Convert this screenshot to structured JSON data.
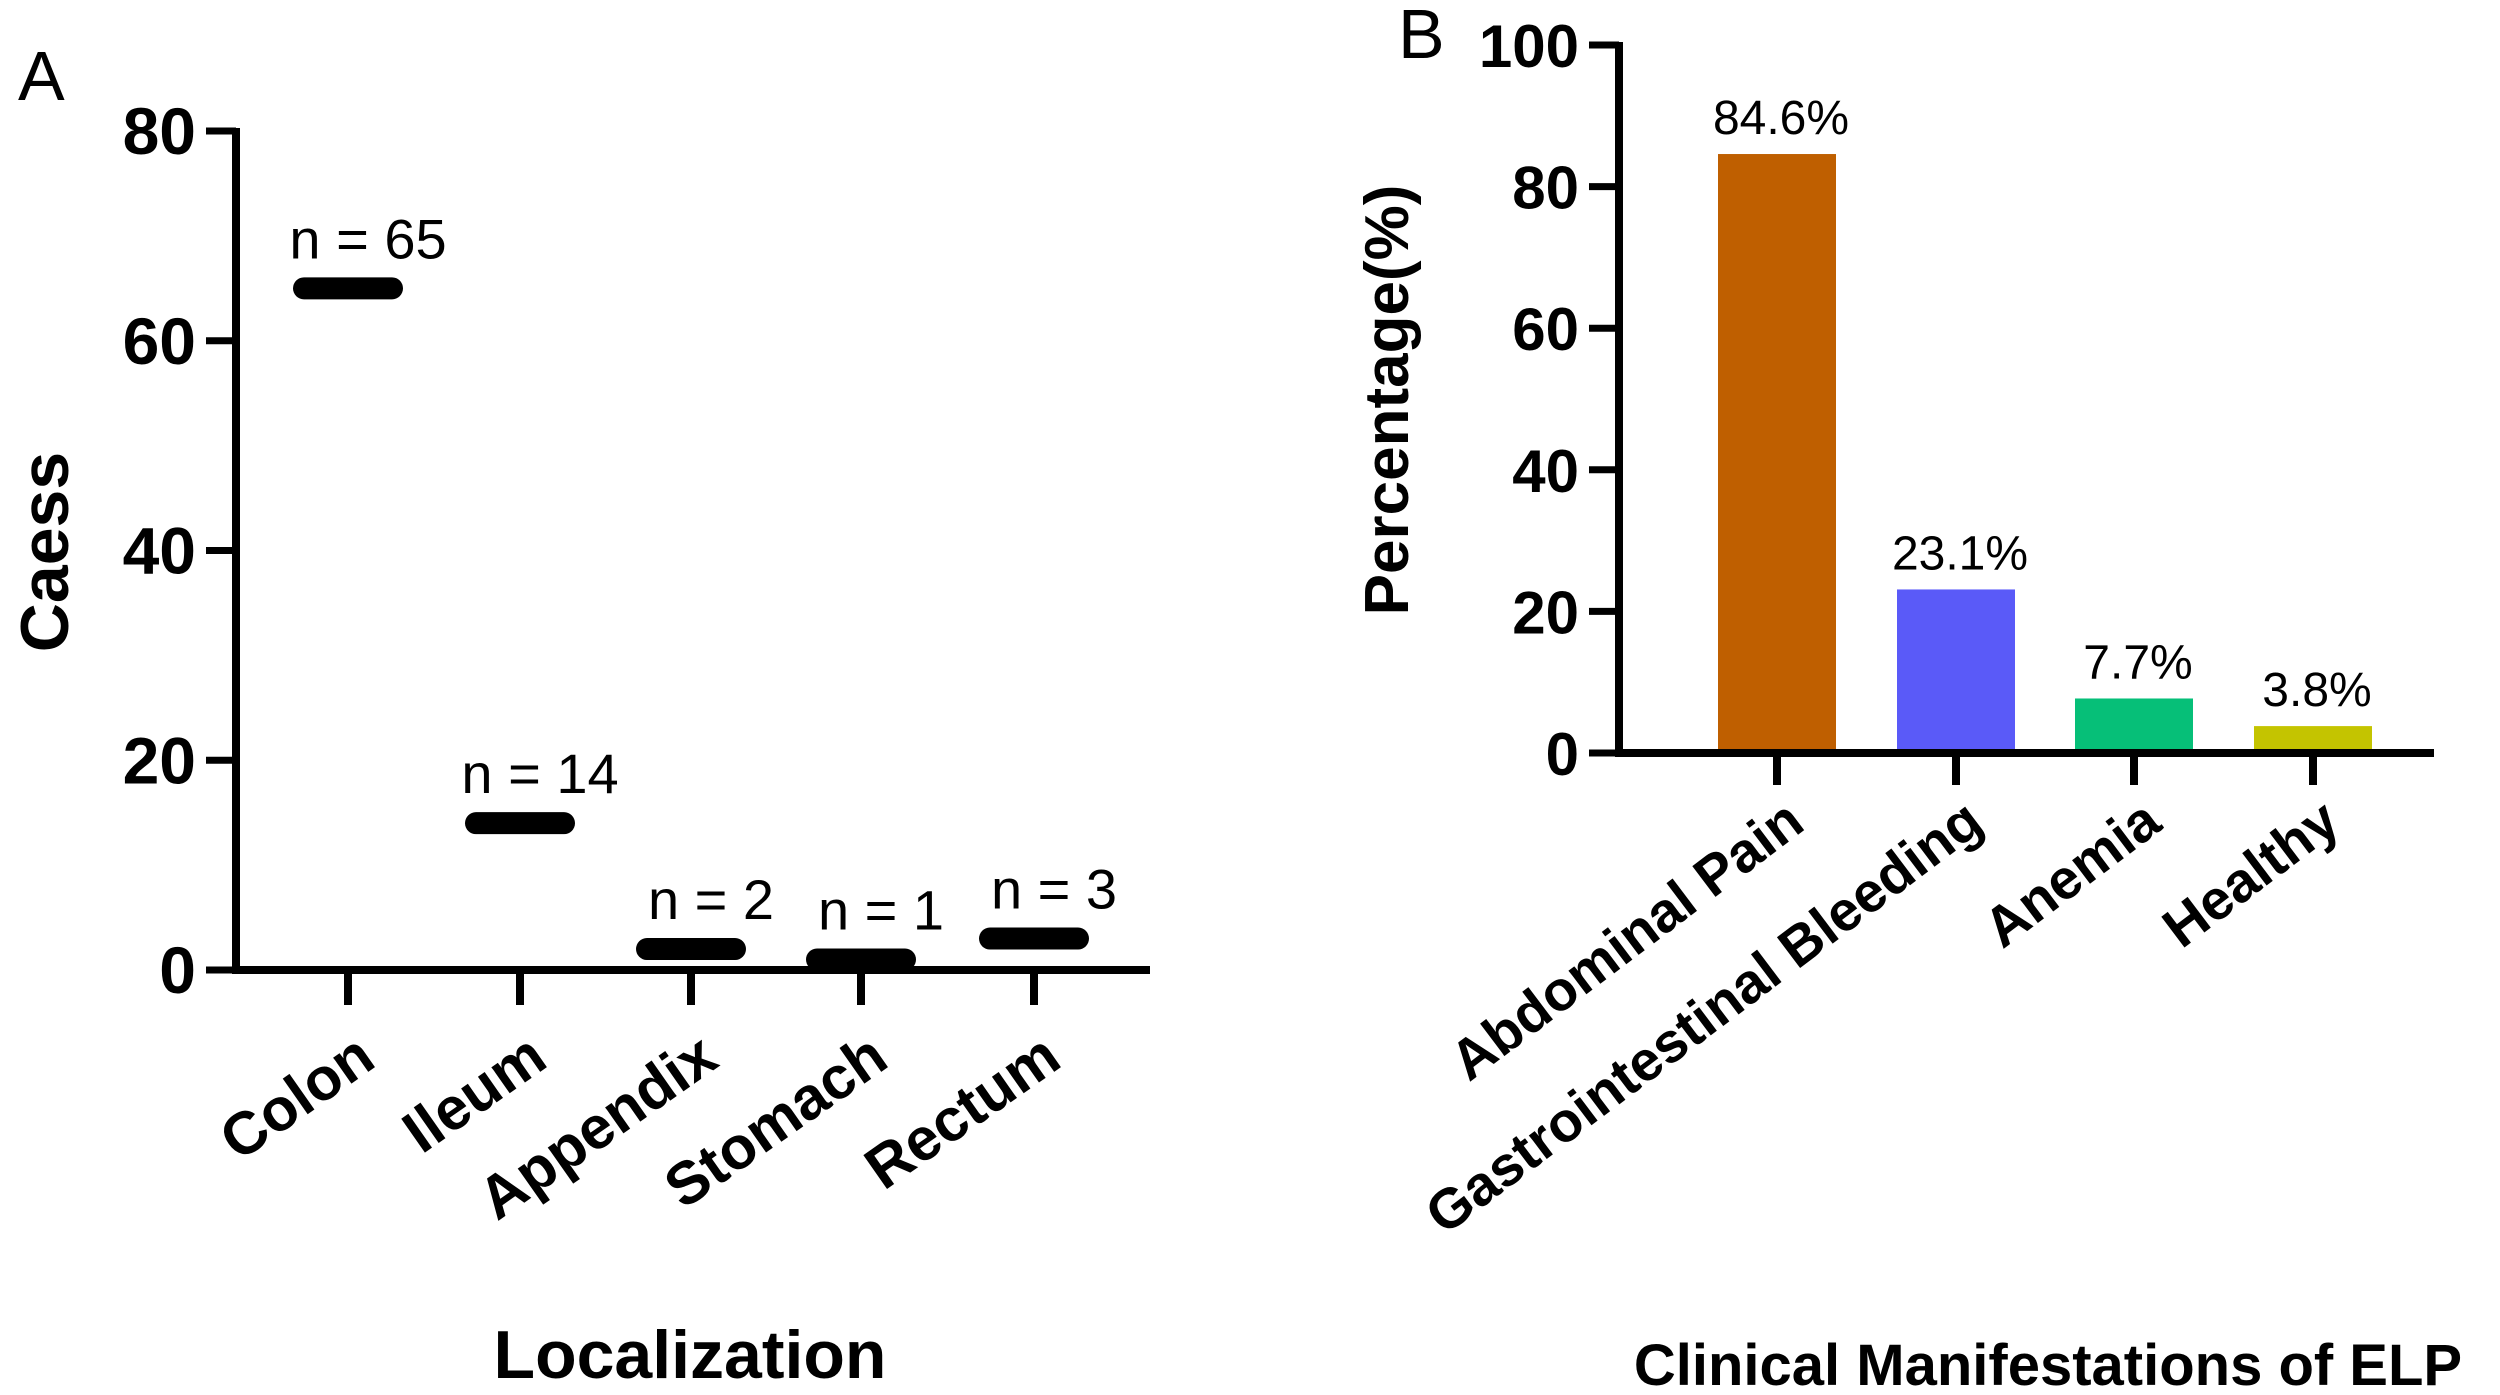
{
  "chart_data": [
    {
      "panel": "A",
      "type": "scatter",
      "xlabel": "Localization",
      "ylabel": "Caess",
      "categories": [
        "Colon",
        "Ileum",
        "Appendix",
        "Stomach",
        "Rectum"
      ],
      "values": [
        65,
        14,
        2,
        1,
        3
      ],
      "annotations": [
        "n = 65",
        "n = 14",
        "n = 2",
        "n = 1",
        "n = 3"
      ],
      "ylim": [
        0,
        80
      ],
      "yticks": [
        0,
        20,
        40,
        60,
        80
      ],
      "grid": false,
      "marker": "horizontal line",
      "color": "#000000"
    },
    {
      "panel": "B",
      "type": "bar",
      "xlabel": "Clinical Manifestations of ELP",
      "ylabel": "Percentage(%)",
      "categories": [
        "Abdominal Pain",
        "Gastrointestinal Bleeding",
        "Anemia",
        "Healthy"
      ],
      "values": [
        84.6,
        23.1,
        7.7,
        3.8
      ],
      "annotations": [
        "84.6%",
        "23.1%",
        "7.7%",
        "3.8%"
      ],
      "colors": [
        "#BF5F00",
        "#5A5AF8",
        "#06BF78",
        "#C4C400"
      ],
      "ylim": [
        0,
        100
      ],
      "yticks": [
        0,
        20,
        40,
        60,
        80,
        100
      ],
      "grid": false
    }
  ]
}
